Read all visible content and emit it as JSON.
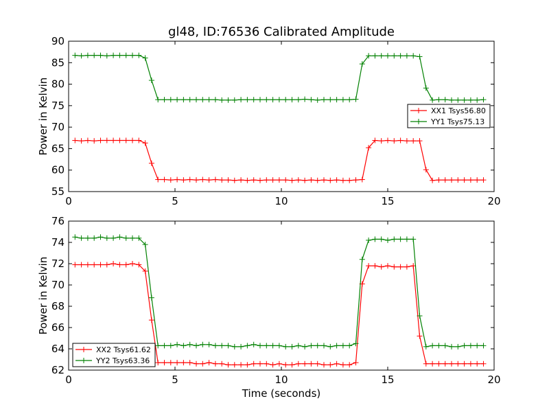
{
  "figure": {
    "title": "gl48, ID:76536 Calibrated Amplitude",
    "xlabel": "Time (seconds)"
  },
  "chart_data": [
    {
      "type": "line",
      "title": "gl48, ID:76536 Calibrated Amplitude",
      "xlabel": "",
      "ylabel": "Power in Kelvin",
      "xlim": [
        0,
        20
      ],
      "ylim": [
        55,
        90
      ],
      "xticks": [
        0,
        5,
        10,
        15,
        20
      ],
      "yticks": [
        55,
        60,
        65,
        70,
        75,
        80,
        85,
        90
      ],
      "grid": false,
      "legend_position": "center-right",
      "marker": "+",
      "series": [
        {
          "name": "XX1 Tsys56.80",
          "color": "#ff0000",
          "x": [
            0.3,
            0.6,
            0.9,
            1.2,
            1.5,
            1.8,
            2.1,
            2.4,
            2.7,
            3.0,
            3.3,
            3.6,
            3.9,
            4.2,
            4.5,
            4.8,
            5.1,
            5.4,
            5.7,
            6.0,
            6.3,
            6.6,
            6.9,
            7.2,
            7.5,
            7.8,
            8.1,
            8.4,
            8.7,
            9.0,
            9.3,
            9.6,
            9.9,
            10.2,
            10.5,
            10.8,
            11.1,
            11.4,
            11.7,
            12.0,
            12.3,
            12.6,
            12.9,
            13.2,
            13.5,
            13.8,
            14.1,
            14.4,
            14.7,
            15.0,
            15.3,
            15.6,
            15.9,
            16.2,
            16.5,
            16.8,
            17.1,
            17.4,
            17.7,
            18.0,
            18.3,
            18.6,
            18.9,
            19.2,
            19.5
          ],
          "y": [
            66.9,
            66.8,
            66.9,
            66.8,
            66.9,
            66.9,
            66.9,
            66.9,
            66.9,
            66.9,
            66.9,
            66.3,
            61.6,
            57.8,
            57.8,
            57.7,
            57.8,
            57.7,
            57.8,
            57.7,
            57.8,
            57.7,
            57.8,
            57.7,
            57.7,
            57.6,
            57.7,
            57.6,
            57.7,
            57.6,
            57.7,
            57.7,
            57.7,
            57.7,
            57.6,
            57.7,
            57.6,
            57.7,
            57.6,
            57.7,
            57.6,
            57.7,
            57.6,
            57.6,
            57.7,
            57.8,
            65.2,
            66.9,
            66.8,
            66.9,
            66.8,
            66.9,
            66.8,
            66.8,
            66.8,
            60.1,
            57.6,
            57.7,
            57.7,
            57.7,
            57.7,
            57.7,
            57.7,
            57.7,
            57.7
          ]
        },
        {
          "name": "YY1 Tsys75.13",
          "color": "#008000",
          "x": [
            0.3,
            0.6,
            0.9,
            1.2,
            1.5,
            1.8,
            2.1,
            2.4,
            2.7,
            3.0,
            3.3,
            3.6,
            3.9,
            4.2,
            4.5,
            4.8,
            5.1,
            5.4,
            5.7,
            6.0,
            6.3,
            6.6,
            6.9,
            7.2,
            7.5,
            7.8,
            8.1,
            8.4,
            8.7,
            9.0,
            9.3,
            9.6,
            9.9,
            10.2,
            10.5,
            10.8,
            11.1,
            11.4,
            11.7,
            12.0,
            12.3,
            12.6,
            12.9,
            13.2,
            13.5,
            13.8,
            14.1,
            14.4,
            14.7,
            15.0,
            15.3,
            15.6,
            15.9,
            16.2,
            16.5,
            16.8,
            17.1,
            17.4,
            17.7,
            18.0,
            18.3,
            18.6,
            18.9,
            19.2,
            19.5
          ],
          "y": [
            86.7,
            86.6,
            86.7,
            86.7,
            86.7,
            86.6,
            86.7,
            86.7,
            86.7,
            86.7,
            86.7,
            86.1,
            80.9,
            76.4,
            76.4,
            76.4,
            76.4,
            76.4,
            76.4,
            76.4,
            76.4,
            76.4,
            76.4,
            76.3,
            76.3,
            76.3,
            76.4,
            76.4,
            76.4,
            76.4,
            76.4,
            76.4,
            76.4,
            76.4,
            76.4,
            76.4,
            76.5,
            76.4,
            76.3,
            76.4,
            76.4,
            76.4,
            76.4,
            76.4,
            76.5,
            84.7,
            86.6,
            86.6,
            86.6,
            86.6,
            86.6,
            86.6,
            86.6,
            86.6,
            86.4,
            79.1,
            76.3,
            76.4,
            76.4,
            76.3,
            76.3,
            76.3,
            76.3,
            76.3,
            76.4
          ]
        }
      ]
    },
    {
      "type": "line",
      "title": "",
      "xlabel": "Time (seconds)",
      "ylabel": "Power in Kelvin",
      "xlim": [
        0,
        20
      ],
      "ylim": [
        62,
        76
      ],
      "xticks": [
        0,
        5,
        10,
        15,
        20
      ],
      "yticks": [
        62,
        64,
        66,
        68,
        70,
        72,
        74,
        76
      ],
      "grid": false,
      "legend_position": "lower-left",
      "marker": "+",
      "series": [
        {
          "name": "XX2 Tsys61.62",
          "color": "#ff0000",
          "x": [
            0.3,
            0.6,
            0.9,
            1.2,
            1.5,
            1.8,
            2.1,
            2.4,
            2.7,
            3.0,
            3.3,
            3.6,
            3.9,
            4.2,
            4.5,
            4.8,
            5.1,
            5.4,
            5.7,
            6.0,
            6.3,
            6.6,
            6.9,
            7.2,
            7.5,
            7.8,
            8.1,
            8.4,
            8.7,
            9.0,
            9.3,
            9.6,
            9.9,
            10.2,
            10.5,
            10.8,
            11.1,
            11.4,
            11.7,
            12.0,
            12.3,
            12.6,
            12.9,
            13.2,
            13.5,
            13.8,
            14.1,
            14.4,
            14.7,
            15.0,
            15.3,
            15.6,
            15.9,
            16.2,
            16.5,
            16.8,
            17.1,
            17.4,
            17.7,
            18.0,
            18.3,
            18.6,
            18.9,
            19.2,
            19.5
          ],
          "y": [
            71.9,
            71.9,
            71.9,
            71.9,
            71.9,
            71.9,
            72.0,
            71.9,
            71.9,
            72.0,
            71.9,
            71.3,
            66.7,
            62.7,
            62.7,
            62.7,
            62.7,
            62.7,
            62.7,
            62.6,
            62.6,
            62.7,
            62.6,
            62.6,
            62.5,
            62.5,
            62.5,
            62.5,
            62.6,
            62.6,
            62.6,
            62.5,
            62.6,
            62.5,
            62.5,
            62.6,
            62.6,
            62.6,
            62.6,
            62.5,
            62.5,
            62.6,
            62.5,
            62.5,
            62.7,
            70.1,
            71.8,
            71.8,
            71.7,
            71.8,
            71.7,
            71.7,
            71.7,
            71.8,
            65.2,
            62.6,
            62.6,
            62.6,
            62.6,
            62.6,
            62.6,
            62.6,
            62.6,
            62.6,
            62.6
          ]
        },
        {
          "name": "YY2 Tsys63.36",
          "color": "#008000",
          "x": [
            0.3,
            0.6,
            0.9,
            1.2,
            1.5,
            1.8,
            2.1,
            2.4,
            2.7,
            3.0,
            3.3,
            3.6,
            3.9,
            4.2,
            4.5,
            4.8,
            5.1,
            5.4,
            5.7,
            6.0,
            6.3,
            6.6,
            6.9,
            7.2,
            7.5,
            7.8,
            8.1,
            8.4,
            8.7,
            9.0,
            9.3,
            9.6,
            9.9,
            10.2,
            10.5,
            10.8,
            11.1,
            11.4,
            11.7,
            12.0,
            12.3,
            12.6,
            12.9,
            13.2,
            13.5,
            13.8,
            14.1,
            14.4,
            14.7,
            15.0,
            15.3,
            15.6,
            15.9,
            16.2,
            16.5,
            16.8,
            17.1,
            17.4,
            17.7,
            18.0,
            18.3,
            18.6,
            18.9,
            19.2,
            19.5
          ],
          "y": [
            74.5,
            74.4,
            74.4,
            74.4,
            74.5,
            74.4,
            74.4,
            74.5,
            74.4,
            74.4,
            74.4,
            73.8,
            68.8,
            64.3,
            64.3,
            64.3,
            64.4,
            64.3,
            64.4,
            64.3,
            64.4,
            64.4,
            64.3,
            64.3,
            64.3,
            64.2,
            64.2,
            64.3,
            64.4,
            64.3,
            64.3,
            64.3,
            64.3,
            64.2,
            64.2,
            64.3,
            64.2,
            64.3,
            64.3,
            64.3,
            64.2,
            64.3,
            64.3,
            64.3,
            64.5,
            72.4,
            74.2,
            74.3,
            74.3,
            74.2,
            74.3,
            74.3,
            74.3,
            74.3,
            67.1,
            64.2,
            64.3,
            64.3,
            64.3,
            64.2,
            64.2,
            64.3,
            64.3,
            64.3,
            64.3
          ]
        }
      ]
    }
  ]
}
